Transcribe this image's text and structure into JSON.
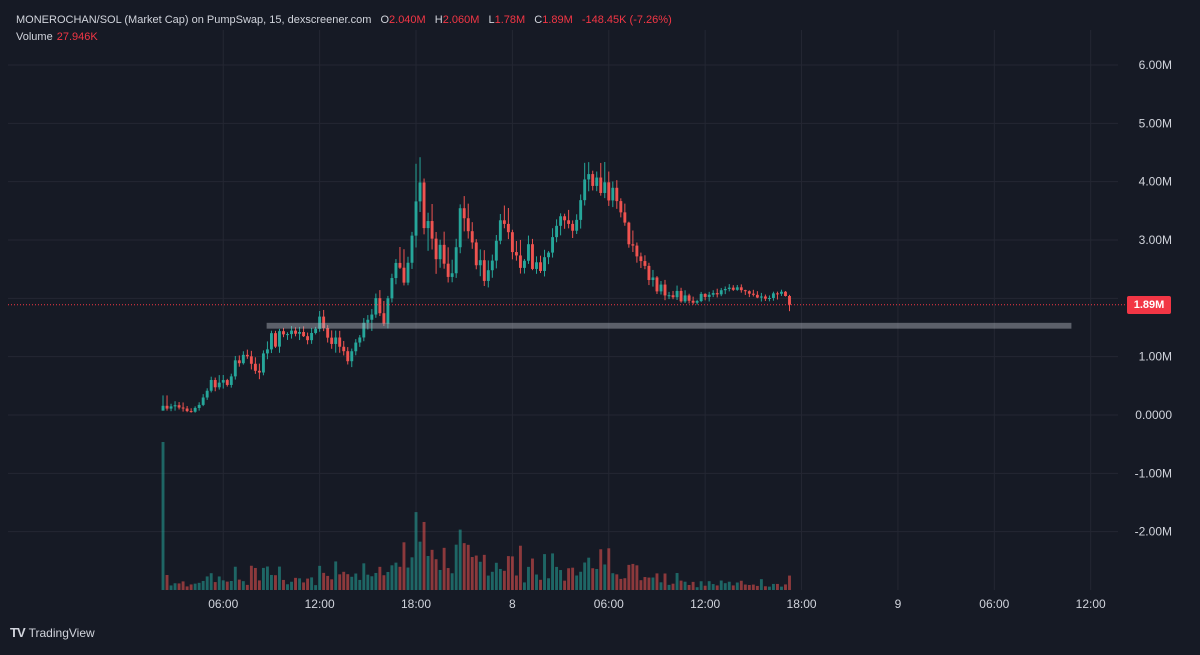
{
  "legend": {
    "symbol": "MONEROCHAN/SOL (Market Cap) on PumpSwap, 15, dexscreener.com",
    "o_label": "O",
    "o_value": "2.040M",
    "h_label": "H",
    "h_value": "2.060M",
    "l_label": "L",
    "l_value": "1.78M",
    "c_label": "C",
    "c_value": "1.89M",
    "change": "-148.45K (-7.26%)",
    "volume_label": "Volume",
    "volume_value": "27.946K"
  },
  "price_tag": "1.89M",
  "brand": {
    "logo": "TV",
    "name": "TradingView"
  },
  "colors": {
    "background": "#161a25",
    "grid": "#242733",
    "up": "#26a69a",
    "down": "#ef5350",
    "text": "#d1d4dc",
    "zone": "#b2b5be"
  },
  "chart_data": {
    "type": "candlestick",
    "interval": "15",
    "y_range": [
      -3000000,
      6600000
    ],
    "y_ticks": [
      {
        "value": 6000000,
        "label": "6.00M"
      },
      {
        "value": 5000000,
        "label": "5.00M"
      },
      {
        "value": 4000000,
        "label": "4.00M"
      },
      {
        "value": 3000000,
        "label": "3.00M"
      },
      {
        "value": 1000000,
        "label": "1.00M"
      },
      {
        "value": 0,
        "label": "0.0000"
      },
      {
        "value": -1000000,
        "label": "-1.00M"
      },
      {
        "value": -2000000,
        "label": "-2.00M"
      }
    ],
    "x_range_hours": [
      -7.4,
      61.7
    ],
    "x_ticks": [
      {
        "hour": 6,
        "label": "06:00"
      },
      {
        "hour": 12,
        "label": "12:00"
      },
      {
        "hour": 18,
        "label": "18:00"
      },
      {
        "hour": 24,
        "label": "8"
      },
      {
        "hour": 30,
        "label": "06:00"
      },
      {
        "hour": 36,
        "label": "12:00"
      },
      {
        "hour": 42,
        "label": "18:00"
      },
      {
        "hour": 48,
        "label": "9"
      },
      {
        "hour": 54,
        "label": "06:00"
      },
      {
        "hour": 60,
        "label": "12:00"
      }
    ],
    "current_price": 1890000,
    "zone": {
      "low": 1480000,
      "high": 1580000,
      "from_hour": 8.7,
      "to_hour": 58.8
    },
    "start_hour": 2.25,
    "candle_interval_hours": 0.25,
    "candles": [
      [
        75,
        336,
        75,
        158
      ],
      [
        158,
        336,
        75,
        110
      ],
      [
        110,
        193,
        65,
        148
      ],
      [
        148,
        236,
        75,
        168
      ],
      [
        168,
        222,
        95,
        128
      ],
      [
        128,
        215,
        58,
        111
      ],
      [
        111,
        154,
        48,
        67
      ],
      [
        67,
        116,
        40,
        56
      ],
      [
        56,
        148,
        40,
        121
      ],
      [
        121,
        218,
        75,
        173
      ],
      [
        173,
        358,
        152,
        300
      ],
      [
        300,
        458,
        259,
        416
      ],
      [
        416,
        657,
        387,
        600
      ],
      [
        600,
        642,
        407,
        475
      ],
      [
        475,
        684,
        435,
        555
      ],
      [
        555,
        686,
        453,
        599
      ],
      [
        599,
        620,
        487,
        515
      ],
      [
        515,
        708,
        469,
        662
      ],
      [
        662,
        1012,
        607,
        937
      ],
      [
        937,
        1021,
        828,
        888
      ],
      [
        888,
        1093,
        864,
        1031
      ],
      [
        1031,
        1121,
        963,
        1006
      ],
      [
        1006,
        1100,
        781,
        878
      ],
      [
        878,
        989,
        705,
        758
      ],
      [
        758,
        881,
        614,
        728
      ],
      [
        728,
        1108,
        681,
        1056
      ],
      [
        1056,
        1262,
        956,
        1125
      ],
      [
        1125,
        1445,
        1062,
        1403
      ],
      [
        1403,
        1443,
        1150,
        1172
      ],
      [
        1172,
        1477,
        1066,
        1437
      ],
      [
        1437,
        1494,
        1334,
        1382
      ],
      [
        1382,
        1418,
        1287,
        1387
      ],
      [
        1387,
        1525,
        1310,
        1447
      ],
      [
        1447,
        1504,
        1349,
        1393
      ],
      [
        1393,
        1510,
        1285,
        1423
      ],
      [
        1423,
        1520,
        1337,
        1351
      ],
      [
        1351,
        1413,
        1212,
        1283
      ],
      [
        1283,
        1493,
        1220,
        1406
      ],
      [
        1406,
        1511,
        1381,
        1478
      ],
      [
        1478,
        1783,
        1427,
        1687
      ],
      [
        1687,
        1801,
        1438,
        1492
      ],
      [
        1492,
        1541,
        1242,
        1326
      ],
      [
        1326,
        1450,
        1135,
        1218
      ],
      [
        1218,
        1447,
        1068,
        1329
      ],
      [
        1329,
        1443,
        1067,
        1170
      ],
      [
        1170,
        1269,
        1021,
        1094
      ],
      [
        1094,
        1164,
        866,
        922
      ],
      [
        922,
        1139,
        821,
        1093
      ],
      [
        1093,
        1301,
        1024,
        1242
      ],
      [
        1242,
        1371,
        1168,
        1329
      ],
      [
        1329,
        1662,
        1265,
        1581
      ],
      [
        1581,
        1713,
        1466,
        1633
      ],
      [
        1633,
        1816,
        1441,
        1722
      ],
      [
        1722,
        2082,
        1666,
        2003
      ],
      [
        2003,
        2141,
        1696,
        1745
      ],
      [
        1745,
        1955,
        1526,
        1566
      ],
      [
        1566,
        2042,
        1484,
        2001
      ],
      [
        2001,
        2422,
        1930,
        2348
      ],
      [
        2348,
        2673,
        2241,
        2607
      ],
      [
        2607,
        2880,
        2504,
        2525
      ],
      [
        2525,
        2842,
        2221,
        2269
      ],
      [
        2269,
        2713,
        2224,
        2610
      ],
      [
        2610,
        3139,
        2504,
        3075
      ],
      [
        3075,
        4307,
        2872,
        3662
      ],
      [
        3662,
        4419,
        3480,
        3986
      ],
      [
        3986,
        4054,
        3097,
        3204
      ],
      [
        3204,
        3468,
        2815,
        3325
      ],
      [
        3325,
        3617,
        2837,
        3023
      ],
      [
        3023,
        3137,
        2420,
        2671
      ],
      [
        2671,
        3006,
        2524,
        2917
      ],
      [
        2917,
        3143,
        2508,
        2594
      ],
      [
        2594,
        2875,
        2272,
        2367
      ],
      [
        2367,
        2662,
        2275,
        2430
      ],
      [
        2430,
        3021,
        2350,
        2876
      ],
      [
        2876,
        3611,
        2773,
        3545
      ],
      [
        3545,
        3753,
        3148,
        3373
      ],
      [
        3373,
        3623,
        3024,
        3151
      ],
      [
        3151,
        3306,
        2849,
        2958
      ],
      [
        2958,
        3015,
        2498,
        2567
      ],
      [
        2567,
        2839,
        2379,
        2654
      ],
      [
        2654,
        2826,
        2211,
        2298
      ],
      [
        2298,
        2650,
        2187,
        2482
      ],
      [
        2482,
        2750,
        2353,
        2647
      ],
      [
        2647,
        3086,
        2513,
        2987
      ],
      [
        2987,
        3446,
        2927,
        3338
      ],
      [
        3338,
        3591,
        3201,
        3276
      ],
      [
        3276,
        3549,
        3016,
        3134
      ],
      [
        3134,
        3176,
        2668,
        2793
      ],
      [
        2793,
        2983,
        2646,
        2735
      ],
      [
        2735,
        3001,
        2425,
        2522
      ],
      [
        2522,
        2675,
        2425,
        2644
      ],
      [
        2644,
        3076,
        2590,
        2928
      ],
      [
        2928,
        3019,
        2483,
        2504
      ],
      [
        2504,
        2720,
        2420,
        2618
      ],
      [
        2618,
        2731,
        2434,
        2469
      ],
      [
        2469,
        2832,
        2375,
        2705
      ],
      [
        2705,
        2810,
        2586,
        2784
      ],
      [
        2784,
        3202,
        2699,
        3049
      ],
      [
        3049,
        3354,
        2961,
        3243
      ],
      [
        3243,
        3457,
        3080,
        3407
      ],
      [
        3407,
        3451,
        3192,
        3338
      ],
      [
        3338,
        3516,
        3200,
        3276
      ],
      [
        3276,
        3336,
        3034,
        3159
      ],
      [
        3159,
        3441,
        3103,
        3345
      ],
      [
        3345,
        3781,
        3196,
        3683
      ],
      [
        3683,
        4323,
        3591,
        4038
      ],
      [
        4038,
        4335,
        3835,
        4130
      ],
      [
        4130,
        4188,
        3849,
        3927
      ],
      [
        3927,
        4174,
        3837,
        4071
      ],
      [
        4071,
        4321,
        3760,
        3806
      ],
      [
        3806,
        4337,
        3718,
        3989
      ],
      [
        3989,
        4174,
        3584,
        3678
      ],
      [
        3678,
        4003,
        3564,
        3895
      ],
      [
        3895,
        4026,
        3534,
        3667
      ],
      [
        3667,
        3715,
        3388,
        3474
      ],
      [
        3474,
        3624,
        3244,
        3298
      ],
      [
        3298,
        3314,
        2868,
        2927
      ],
      [
        2927,
        3163,
        2794,
        2904
      ],
      [
        2904,
        2957,
        2611,
        2719
      ],
      [
        2719,
        2784,
        2520,
        2639
      ],
      [
        2639,
        2738,
        2499,
        2556
      ],
      [
        2556,
        2609,
        2227,
        2314
      ],
      [
        2314,
        2487,
        2201,
        2358
      ],
      [
        2358,
        2382,
        2074,
        2119
      ],
      [
        2119,
        2297,
        2065,
        2236
      ],
      [
        2236,
        2316,
        1968,
        2050
      ],
      [
        2050,
        2111,
        1987,
        2053
      ],
      [
        2053,
        2127,
        1985,
        2019
      ],
      [
        2019,
        2219,
        1972,
        2127
      ],
      [
        2127,
        2181,
        1925,
        1948
      ],
      [
        1948,
        2138,
        1920,
        2050
      ],
      [
        2050,
        2079,
        1912,
        1958
      ],
      [
        1958,
        2029,
        1895,
        1925
      ],
      [
        1925,
        1975,
        1893,
        1953
      ],
      [
        1953,
        2110,
        1934,
        2076
      ],
      [
        2076,
        2087,
        1966,
        2024
      ],
      [
        2024,
        2111,
        1946,
        2062
      ],
      [
        2062,
        2139,
        2021,
        2090
      ],
      [
        2090,
        2165,
        2015,
        2068
      ],
      [
        2068,
        2178,
        2037,
        2139
      ],
      [
        2139,
        2203,
        2072,
        2160
      ],
      [
        2160,
        2244,
        2119,
        2183
      ],
      [
        2183,
        2226,
        2127,
        2146
      ],
      [
        2146,
        2229,
        2130,
        2189
      ],
      [
        2189,
        2239,
        2097,
        2140
      ],
      [
        2140,
        2147,
        2058,
        2122
      ],
      [
        2122,
        2137,
        2021,
        2080
      ],
      [
        2080,
        2146,
        2032,
        2060
      ],
      [
        2060,
        2123,
        2002,
        2013
      ],
      [
        2013,
        2093,
        1945,
        2032
      ],
      [
        2032,
        2065,
        1955,
        1994
      ],
      [
        1994,
        2049,
        1948,
        2006
      ],
      [
        2006,
        2114,
        1959,
        2085
      ],
      [
        2085,
        2115,
        1980,
        2078
      ],
      [
        2078,
        2148,
        2041,
        2113
      ],
      [
        2113,
        2125,
        2031,
        2040
      ],
      [
        2040,
        2060,
        1780,
        1890
      ]
    ]
  }
}
